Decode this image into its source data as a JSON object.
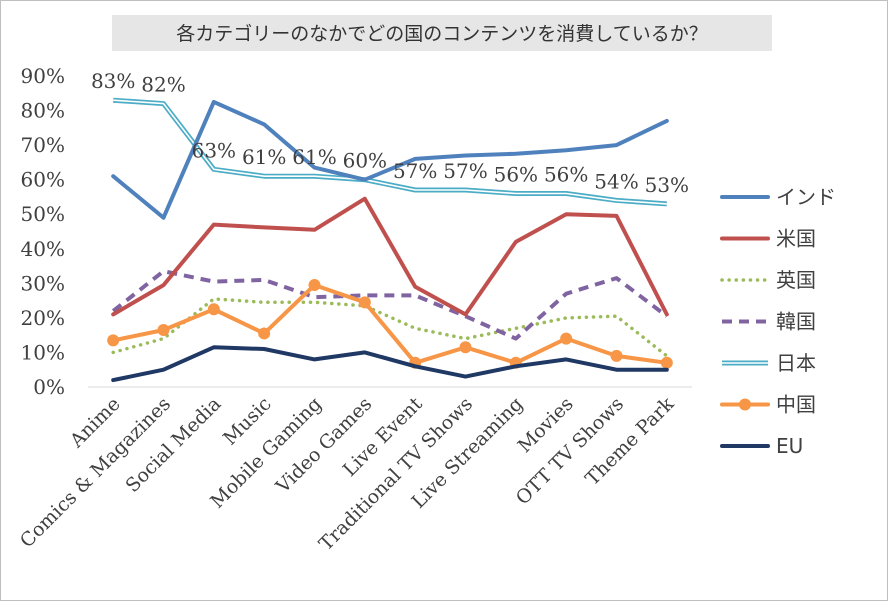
{
  "chart_data": {
    "type": "line",
    "title": "各カテゴリーのなかでどの国のコンテンツを消費しているか？",
    "xlabel": "",
    "ylabel": "",
    "ylim": [
      0,
      90
    ],
    "yticks": [
      "0%",
      "10%",
      "20%",
      "30%",
      "40%",
      "50%",
      "60%",
      "70%",
      "80%",
      "90%"
    ],
    "grid": false,
    "legend_position": "right",
    "categories": [
      "Anime",
      "Comics & Magazines",
      "Social Media",
      "Music",
      "Mobile Gaming",
      "Video Games",
      "Live Event",
      "Traditional TV Shows",
      "Live Streaming",
      "Movies",
      "OTT TV Shows",
      "Theme Park"
    ],
    "series": [
      {
        "name": "インド",
        "style": "solid",
        "color": "#4F81BD",
        "values": [
          61,
          49,
          82.5,
          76,
          63.5,
          60,
          66,
          67,
          67.5,
          68.5,
          70,
          77
        ]
      },
      {
        "name": "米国",
        "style": "solid",
        "color": "#C0504D",
        "values": [
          21,
          29.5,
          47,
          46.2,
          45.5,
          54.5,
          29,
          21,
          42,
          50,
          49.5,
          21
        ]
      },
      {
        "name": "英国",
        "style": "dotted",
        "color": "#9BBB59",
        "values": [
          10,
          14,
          25.5,
          24.5,
          24.5,
          23.5,
          17,
          14,
          17,
          20,
          20.5,
          9
        ]
      },
      {
        "name": "韓国",
        "style": "dashed",
        "color": "#8064A2",
        "values": [
          22,
          33.5,
          30.5,
          31,
          26,
          26.5,
          26.5,
          20.5,
          14,
          27,
          31.5,
          20.5
        ]
      },
      {
        "name": "日本",
        "style": "double",
        "color": "#4BACC6",
        "values": [
          83,
          82,
          63,
          61,
          61,
          60,
          57,
          57,
          56,
          56,
          54,
          53
        ],
        "data_labels": [
          "83%",
          "82%",
          "63%",
          "61%",
          "61%",
          "60%",
          "57%",
          "57%",
          "56%",
          "56%",
          "54%",
          "53%"
        ]
      },
      {
        "name": "中国",
        "style": "solid-markers",
        "color": "#F79646",
        "values": [
          13.5,
          16.5,
          22.5,
          15.5,
          29.5,
          24.5,
          7,
          11.5,
          7,
          14,
          9,
          7
        ]
      },
      {
        "name": "EU",
        "style": "solid",
        "color": "#1F3864",
        "values": [
          2,
          5,
          11.5,
          11,
          8,
          10,
          6,
          3,
          6,
          8,
          5,
          5
        ]
      }
    ]
  }
}
